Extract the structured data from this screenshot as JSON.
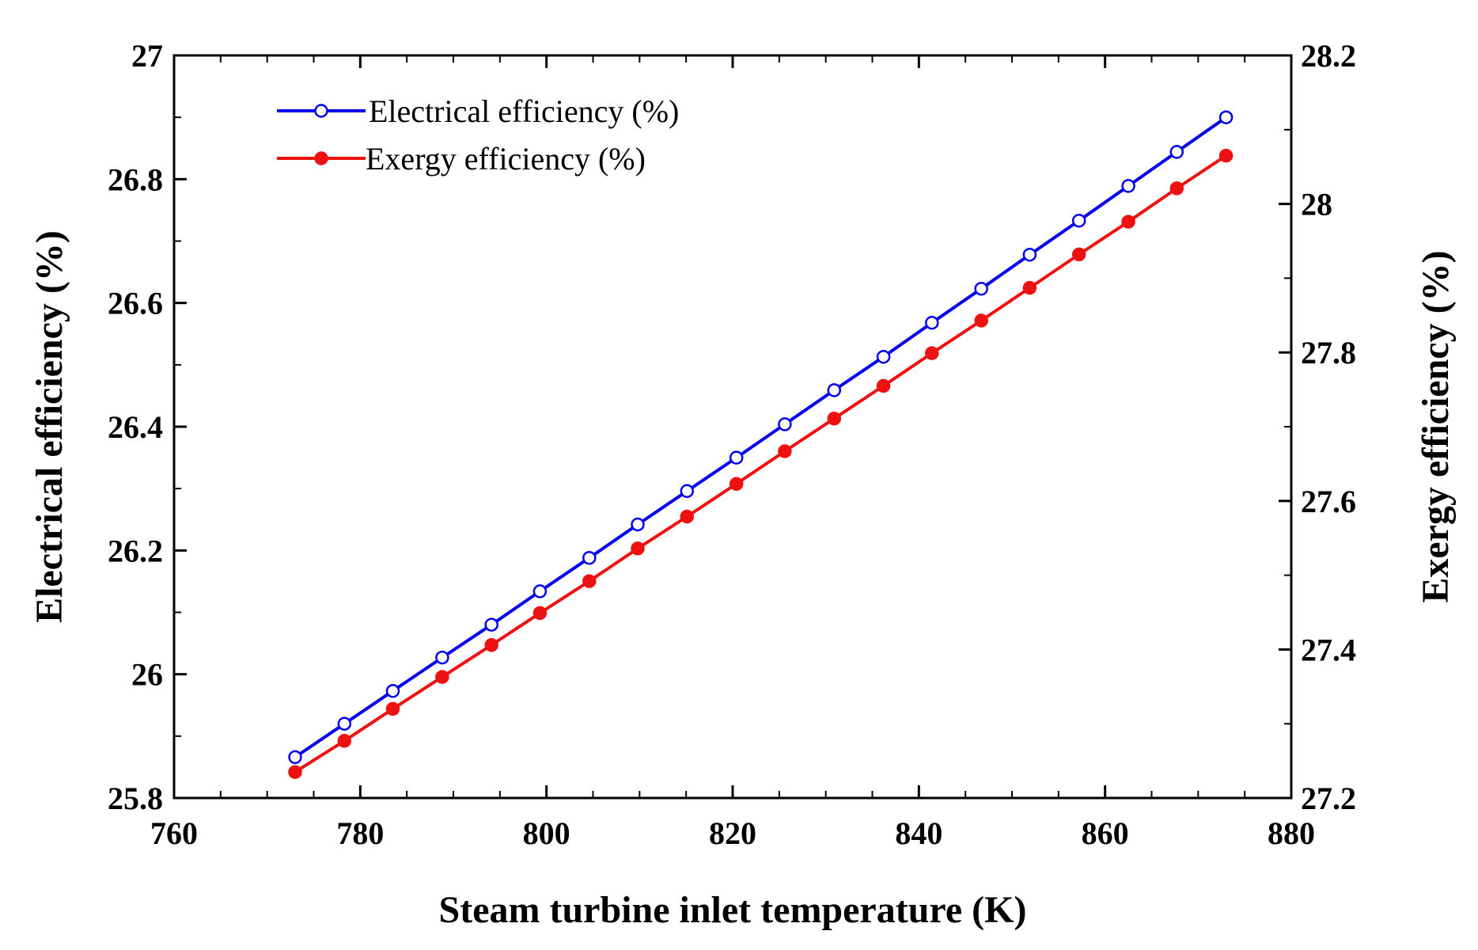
{
  "chart_data": {
    "type": "line",
    "xlabel": "Steam turbine inlet temperature (K)",
    "ylabel": "Electrical efficiency (%)",
    "y2label": "Exergy efficiency (%)",
    "xlim": [
      760,
      880
    ],
    "ylim": [
      25.8,
      27
    ],
    "y2lim": [
      27.2,
      28.2
    ],
    "xticks": [
      760,
      780,
      800,
      820,
      840,
      860,
      880
    ],
    "xtick_labels": [
      "760",
      "780",
      "800",
      "820",
      "840",
      "860",
      "880"
    ],
    "yticks": [
      25.8,
      26,
      26.2,
      26.4,
      26.6,
      26.8,
      27
    ],
    "ytick_labels": [
      "25.8",
      "26",
      "26.2",
      "26.4",
      "26.6",
      "26.8",
      "27"
    ],
    "y2ticks": [
      27.2,
      27.4,
      27.6,
      27.8,
      28,
      28.2
    ],
    "y2tick_labels": [
      "27.2",
      "27.4",
      "27.6",
      "27.8",
      "28",
      "28.2"
    ],
    "legend_position": "top-left",
    "x": [
      773,
      778.3,
      783.5,
      788.8,
      794.1,
      799.3,
      804.6,
      809.8,
      815.1,
      820.4,
      825.6,
      830.9,
      836.2,
      841.4,
      846.7,
      851.9,
      857.2,
      862.5,
      867.7,
      873
    ],
    "series": [
      {
        "name": "Electrical efficiency (%)",
        "axis": "left",
        "color": "#0000ee",
        "marker": "open-circle",
        "values": [
          25.866,
          25.92,
          25.973,
          26.027,
          26.08,
          26.134,
          26.188,
          26.242,
          26.296,
          26.35,
          26.404,
          26.459,
          26.513,
          26.568,
          26.623,
          26.678,
          26.733,
          26.789,
          26.844,
          26.9
        ]
      },
      {
        "name": "Exergy efficiency (%)",
        "axis": "right",
        "color": "#ee1111",
        "marker": "filled-circle",
        "values": [
          27.235,
          27.277,
          27.32,
          27.363,
          27.406,
          27.449,
          27.492,
          27.536,
          27.579,
          27.623,
          27.667,
          27.711,
          27.755,
          27.799,
          27.843,
          27.887,
          27.932,
          27.976,
          28.021,
          28.065
        ]
      }
    ]
  }
}
